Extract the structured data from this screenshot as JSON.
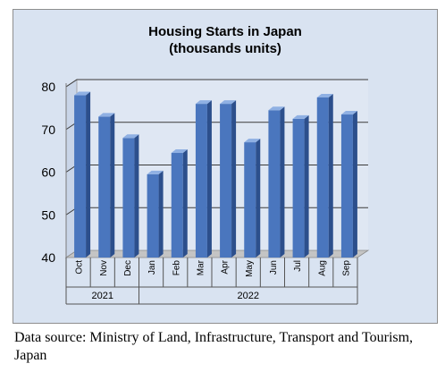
{
  "chart_data": {
    "type": "bar",
    "title_lines": [
      "Housing Starts in Japan",
      "(thousands units)"
    ],
    "categories": [
      "Oct",
      "Nov",
      "Dec",
      "Jan",
      "Feb",
      "Mar",
      "Apr",
      "May",
      "Jun",
      "Jul",
      "Aug",
      "Sep"
    ],
    "values": [
      78,
      73,
      68,
      59.5,
      64.5,
      76,
      76,
      67,
      74.5,
      72.5,
      77.5,
      73.5
    ],
    "year_groups": [
      {
        "label": "2021",
        "count": 3
      },
      {
        "label": "2022",
        "count": 9
      }
    ],
    "ylim": [
      40,
      80
    ],
    "yticks": [
      40,
      50,
      60,
      70,
      80
    ],
    "grid": true,
    "colors": {
      "bar": "#4a76be",
      "bar_side": "#2c4f8c",
      "bar_top": "#8fb0e3",
      "background": "#d9e3f1"
    }
  },
  "caption": "Data source: Ministry of Land, Infrastructure, Transport and Tourism, Japan"
}
